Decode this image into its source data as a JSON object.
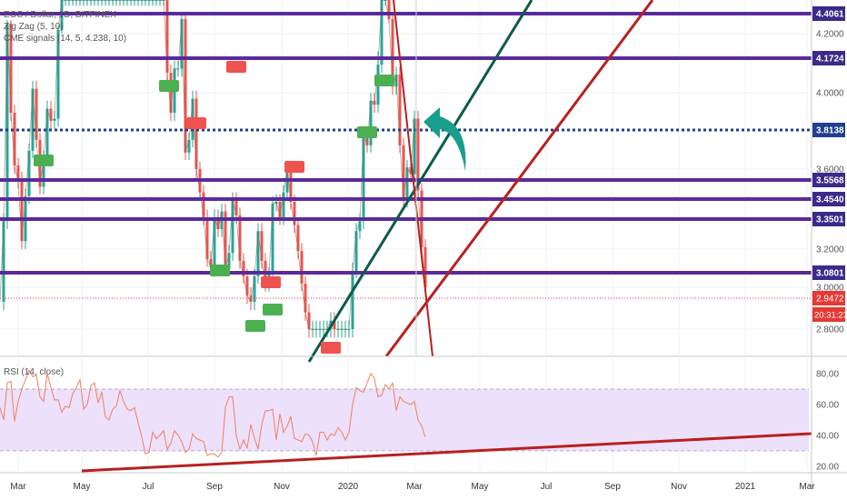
{
  "legend": {
    "symbol": "EOS / Dollar, 1D, BITFINEX",
    "zigzag": "Zig Zag (5, 10)",
    "signals": "CME signals (14, 5, 4.238, 10)",
    "rsi": "RSI (14, close)"
  },
  "colors": {
    "level_line": "#5b2a9a",
    "level_label_bg": "#3c2a8a",
    "pivot_line": "#1f3f8f",
    "trend_green": "#0b5a4a",
    "trend_red": "#b82020",
    "candle_up": "#26a69a",
    "candle_down": "#ef5350",
    "rsi_line": "#f08060",
    "rsi_band": "#ede0fb",
    "arrow": "#179e8c",
    "current_price": "#e53935",
    "long_badge": "#4caf50",
    "short_badge": "#ef5350"
  },
  "chart_data": [
    {
      "type": "line",
      "title": "EOS / Dollar, 1D, BITFINEX",
      "ylim": [
        2.8,
        4.5
      ],
      "y_ticks": [
        "4.2000",
        "4.0000",
        "3.6000",
        "3.2000",
        "3.0000",
        "2.8000"
      ],
      "horizontal_levels": [
        {
          "label": "4.4061",
          "value": 4.4061,
          "style": "solid"
        },
        {
          "label": "4.1724",
          "value": 4.1724,
          "style": "solid"
        },
        {
          "label": "3.8138",
          "value": 3.8138,
          "style": "dotted"
        },
        {
          "label": "3.5568",
          "value": 3.5568,
          "style": "solid"
        },
        {
          "label": "3.4540",
          "value": 3.454,
          "style": "solid"
        },
        {
          "label": "3.3501",
          "value": 3.3501,
          "style": "solid"
        },
        {
          "label": "3.0801",
          "value": 3.0801,
          "style": "solid"
        }
      ],
      "current_price": {
        "label": "2.9472",
        "value": 2.9472,
        "countdown": "20:31:23"
      },
      "x_ticks": [
        "Mar",
        "May",
        "Jul",
        "Sep",
        "Nov",
        "2020",
        "Mar",
        "May",
        "Jul",
        "Sep",
        "Nov",
        "2021",
        "Mar"
      ],
      "series": [
        {
          "x": [
            0,
            4,
            8,
            12,
            16,
            20,
            24,
            28,
            32,
            36,
            40,
            44,
            48,
            52,
            56,
            60,
            64,
            68,
            72,
            76,
            80,
            84,
            88,
            92,
            96,
            100,
            104,
            108,
            112,
            116,
            120,
            124,
            128,
            132,
            136,
            140,
            144,
            148,
            152,
            156,
            160,
            164,
            168,
            172,
            176,
            180,
            184,
            188,
            192,
            196,
            200,
            204,
            208,
            212,
            216,
            220,
            224,
            228,
            232,
            236,
            240,
            244,
            248,
            252,
            256,
            260,
            264,
            268,
            272,
            276,
            280,
            284,
            288,
            292,
            296,
            300,
            304,
            308,
            312,
            316,
            320,
            324,
            328,
            332,
            336,
            340,
            344,
            348,
            352,
            356,
            360,
            364,
            368,
            372,
            376,
            380,
            384,
            388,
            392,
            396,
            400,
            404,
            408,
            412,
            416,
            420,
            424,
            428,
            432,
            436,
            440,
            444,
            448,
            452,
            456,
            460,
            464,
            468
          ],
          "values": [
            2.93,
            3.34,
            4.3,
            3.9,
            3.62,
            3.55,
            3.24,
            3.47,
            3.7,
            4.02,
            3.76,
            3.52,
            3.66,
            3.92,
            3.86,
            3.87,
            4.24,
            4.5,
            4.5,
            4.5,
            4.5,
            4.5,
            4.5,
            4.5,
            4.5,
            4.5,
            4.5,
            4.5,
            4.5,
            4.5,
            4.5,
            4.5,
            4.5,
            4.5,
            4.5,
            4.5,
            4.5,
            4.5,
            4.5,
            4.5,
            4.5,
            4.5,
            4.5,
            4.5,
            4.5,
            4.5,
            4.1,
            3.9,
            4.12,
            4.12,
            4.35,
            3.69,
            3.76,
            3.97,
            3.6,
            3.49,
            3.36,
            3.15,
            3.11,
            3.36,
            3.3,
            3.39,
            3.1,
            3.18,
            3.45,
            3.37,
            3.14,
            3.06,
            2.96,
            2.93,
            3.06,
            3.29,
            3.14,
            3.02,
            3.07,
            3.43,
            3.44,
            3.36,
            3.49,
            3.6,
            3.44,
            3.32,
            3.19,
            3.02,
            2.88,
            2.8,
            2.8,
            2.8,
            2.8,
            2.8,
            2.8,
            2.84,
            2.8,
            2.8,
            2.8,
            2.8,
            2.8,
            3.09,
            3.29,
            3.34,
            3.79,
            3.73,
            3.96,
            3.94,
            4.14,
            4.5,
            4.5,
            4.35,
            4.03,
            4.09,
            3.73,
            3.45,
            3.61,
            3.58,
            3.87,
            3.5,
            3.21,
            3.0
          ]
        }
      ]
    },
    {
      "type": "line",
      "title": "RSI (14, close)",
      "ylim": [
        17,
        90
      ],
      "y_ticks": [
        "80.00",
        "60.00",
        "40.00",
        "20.00"
      ],
      "bands": [
        30,
        70
      ],
      "series": [
        {
          "x": [
            0,
            4,
            8,
            12,
            16,
            20,
            24,
            28,
            32,
            36,
            40,
            44,
            48,
            52,
            56,
            60,
            64,
            68,
            72,
            76,
            80,
            84,
            88,
            92,
            96,
            100,
            104,
            108,
            112,
            116,
            120,
            124,
            128,
            132,
            136,
            140,
            144,
            148,
            152,
            156,
            160,
            164,
            168,
            172,
            176,
            180,
            184,
            188,
            192,
            196,
            200,
            204,
            208,
            212,
            216,
            220,
            224,
            228,
            232,
            236,
            240,
            244,
            248,
            252,
            256,
            260,
            264,
            268,
            272,
            276,
            280,
            284,
            288,
            292,
            296,
            300,
            304,
            308,
            312,
            316,
            320,
            324,
            328,
            332,
            336,
            340,
            344,
            348,
            352,
            356,
            360,
            364,
            368,
            372,
            376,
            380,
            384,
            388,
            392,
            396,
            400,
            404,
            408,
            412,
            416,
            420,
            424,
            428,
            432,
            436,
            440,
            444,
            448,
            452,
            456,
            460,
            464,
            468
          ],
          "values": [
            58,
            50,
            74,
            75,
            49,
            62,
            70,
            76,
            82,
            78,
            79,
            65,
            62,
            80,
            71,
            63,
            63,
            55,
            59,
            58,
            67,
            71,
            76,
            57,
            60,
            72,
            74,
            61,
            68,
            52,
            50,
            57,
            59,
            69,
            62,
            57,
            56,
            58,
            48,
            39,
            28,
            29,
            42,
            38,
            40,
            43,
            31,
            35,
            43,
            40,
            36,
            29,
            31,
            41,
            38,
            37,
            36,
            27,
            28,
            28,
            26,
            29,
            58,
            65,
            65,
            40,
            31,
            37,
            32,
            47,
            38,
            31,
            47,
            56,
            56,
            57,
            37,
            54,
            42,
            46,
            52,
            38,
            37,
            36,
            41,
            40,
            36,
            27,
            42,
            42,
            37,
            41,
            40,
            45,
            42,
            37,
            42,
            60,
            71,
            69,
            68,
            74,
            80,
            77,
            65,
            66,
            73,
            70,
            74,
            56,
            65,
            62,
            61,
            60,
            62,
            50,
            46,
            39
          ]
        }
      ]
    }
  ]
}
